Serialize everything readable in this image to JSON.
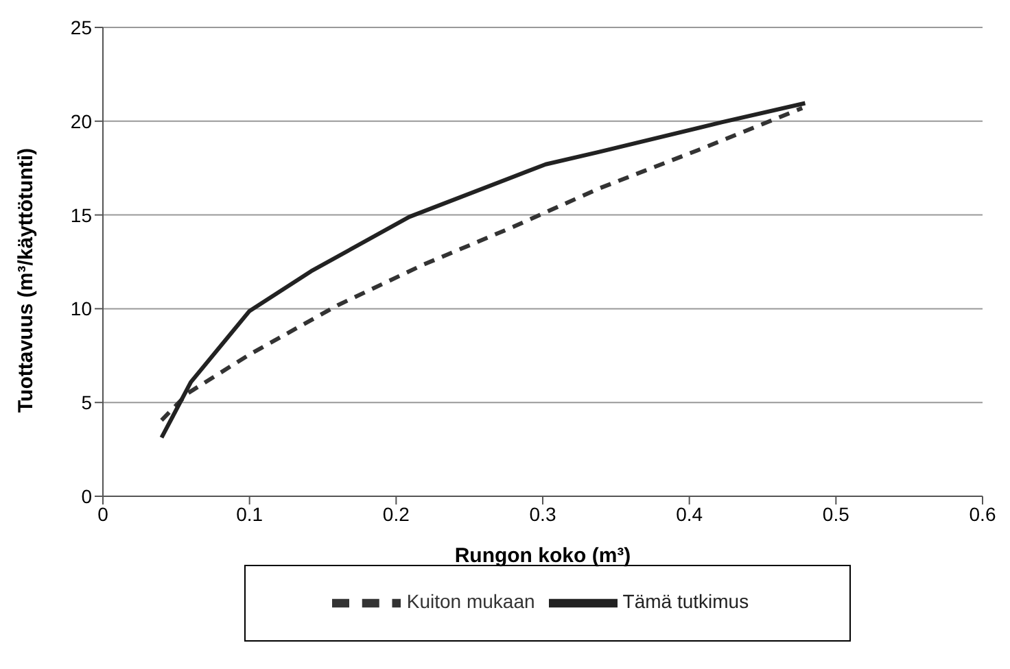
{
  "chart_data": {
    "type": "line",
    "xlabel": "Rungon koko (m³)",
    "ylabel": "Tuottavuus (m³/käyttötunti)",
    "xlim": [
      0,
      0.6
    ],
    "xticks": [
      0,
      0.1,
      0.2,
      0.3,
      0.4,
      0.5,
      0.6
    ],
    "ylim": [
      0,
      25
    ],
    "yticks": [
      0,
      5,
      10,
      15,
      20,
      25
    ],
    "grid": "y",
    "legend": "bottom",
    "marker": "none",
    "series": [
      {
        "name": "Kuiton mukaan",
        "color": "#333333",
        "line_style": "dashed",
        "x": [
          0.04,
          0.058,
          0.1,
          0.16,
          0.218,
          0.28,
          0.338,
          0.406,
          0.477
        ],
        "values": [
          4.05,
          5.5,
          7.56,
          10.18,
          12.33,
          14.37,
          16.4,
          18.46,
          20.7
        ]
      },
      {
        "name": "Tämä tutkimus",
        "color": "#222222",
        "line_style": "solid",
        "x": [
          0.04,
          0.06,
          0.1,
          0.142,
          0.209,
          0.302,
          0.338,
          0.422,
          0.479
        ],
        "values": [
          3.13,
          6.09,
          9.88,
          12.0,
          14.9,
          17.7,
          18.35,
          19.94,
          20.96
        ]
      }
    ]
  }
}
